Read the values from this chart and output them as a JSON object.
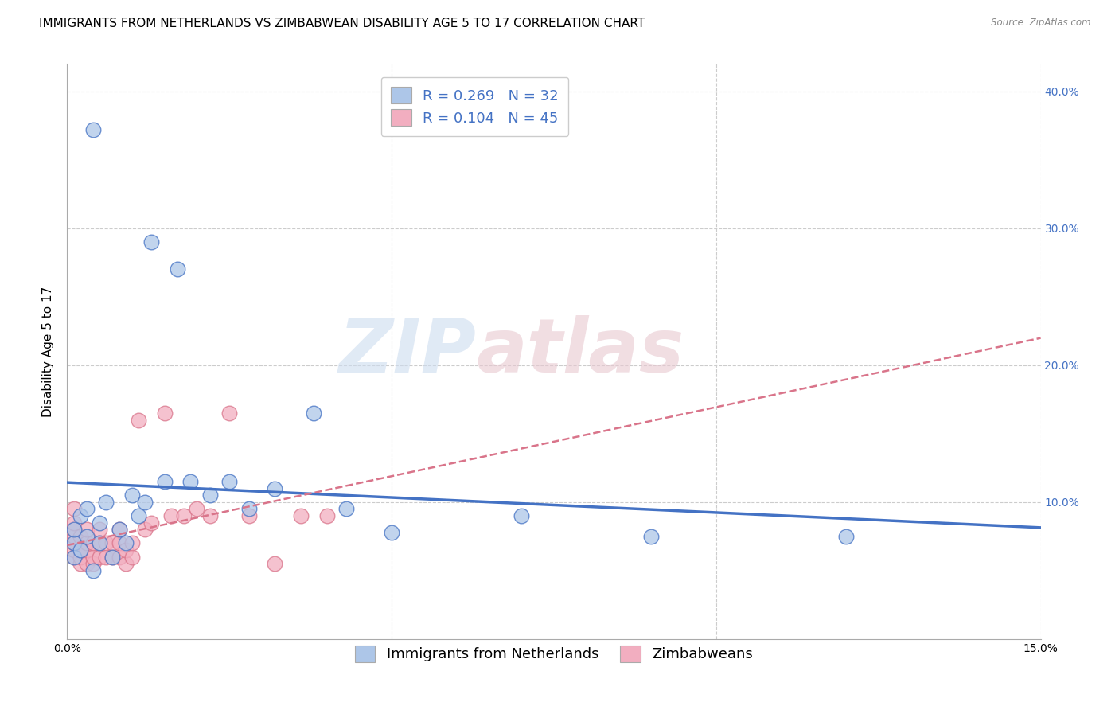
{
  "title": "IMMIGRANTS FROM NETHERLANDS VS ZIMBABWEAN DISABILITY AGE 5 TO 17 CORRELATION CHART",
  "source": "Source: ZipAtlas.com",
  "ylabel": "Disability Age 5 to 17",
  "xlim": [
    0.0,
    0.15
  ],
  "ylim": [
    0.0,
    0.42
  ],
  "blue_R": "0.269",
  "blue_N": "32",
  "pink_R": "0.104",
  "pink_N": "45",
  "blue_color": "#adc6e8",
  "pink_color": "#f2aec0",
  "blue_line_color": "#4472c4",
  "pink_line_color": "#d9748a",
  "watermark_zip": "ZIP",
  "watermark_atlas": "atlas",
  "grid_color": "#cccccc",
  "title_fontsize": 11,
  "axis_fontsize": 10,
  "legend_fontsize": 13,
  "blue_points_x": [
    0.001,
    0.001,
    0.001,
    0.002,
    0.002,
    0.003,
    0.003,
    0.004,
    0.004,
    0.005,
    0.005,
    0.006,
    0.007,
    0.008,
    0.009,
    0.01,
    0.011,
    0.012,
    0.013,
    0.015,
    0.017,
    0.019,
    0.022,
    0.025,
    0.028,
    0.032,
    0.038,
    0.043,
    0.05,
    0.07,
    0.09,
    0.12
  ],
  "blue_points_y": [
    0.06,
    0.07,
    0.08,
    0.065,
    0.09,
    0.075,
    0.095,
    0.05,
    0.372,
    0.07,
    0.085,
    0.1,
    0.06,
    0.08,
    0.07,
    0.105,
    0.09,
    0.1,
    0.29,
    0.115,
    0.27,
    0.115,
    0.105,
    0.115,
    0.095,
    0.11,
    0.165,
    0.095,
    0.078,
    0.09,
    0.075,
    0.075
  ],
  "pink_points_x": [
    0.001,
    0.001,
    0.001,
    0.001,
    0.001,
    0.001,
    0.001,
    0.002,
    0.002,
    0.002,
    0.002,
    0.003,
    0.003,
    0.003,
    0.003,
    0.004,
    0.004,
    0.004,
    0.005,
    0.005,
    0.005,
    0.006,
    0.006,
    0.007,
    0.007,
    0.008,
    0.008,
    0.008,
    0.009,
    0.009,
    0.01,
    0.01,
    0.011,
    0.012,
    0.013,
    0.015,
    0.016,
    0.018,
    0.02,
    0.022,
    0.025,
    0.028,
    0.032,
    0.036,
    0.04
  ],
  "pink_points_y": [
    0.06,
    0.065,
    0.07,
    0.075,
    0.08,
    0.085,
    0.095,
    0.055,
    0.06,
    0.065,
    0.075,
    0.055,
    0.065,
    0.07,
    0.08,
    0.055,
    0.06,
    0.07,
    0.06,
    0.07,
    0.08,
    0.06,
    0.07,
    0.06,
    0.07,
    0.06,
    0.07,
    0.08,
    0.055,
    0.065,
    0.06,
    0.07,
    0.16,
    0.08,
    0.085,
    0.165,
    0.09,
    0.09,
    0.095,
    0.09,
    0.165,
    0.09,
    0.055,
    0.09,
    0.09
  ]
}
